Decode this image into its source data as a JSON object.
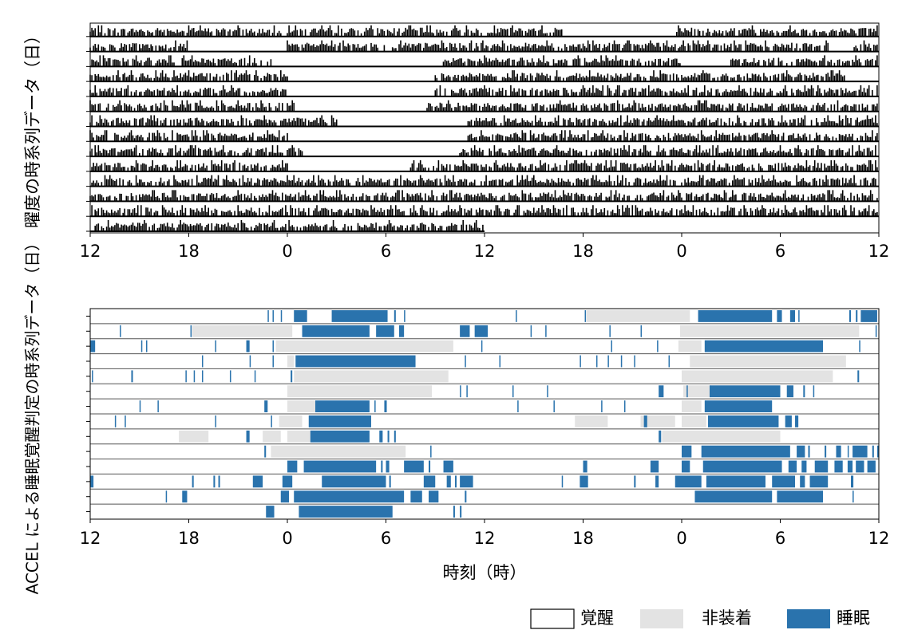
{
  "chart_data": [
    {
      "type": "actogram",
      "ylabel": "曜度の時系列データ（日）",
      "x_tick_labels": [
        "12",
        "18",
        "0",
        "6",
        "12",
        "18",
        "0",
        "6",
        "12"
      ],
      "x_range_hours": [
        0,
        48
      ],
      "days": 14,
      "last_day_end_hour": 24,
      "active_periods": [
        [
          [
            0,
            29
          ],
          [
            35.6,
            48
          ]
        ],
        [
          [
            0,
            6
          ],
          [
            12,
            45
          ],
          [
            46.5,
            48
          ]
        ],
        [
          [
            0,
            11
          ],
          [
            21.5,
            36
          ],
          [
            39,
            48
          ]
        ],
        [
          [
            0,
            12
          ],
          [
            21,
            46
          ]
        ],
        [
          [
            0,
            12
          ],
          [
            21,
            48
          ]
        ],
        [
          [
            0,
            12.5
          ],
          [
            20.5,
            48
          ]
        ],
        [
          [
            0,
            15
          ],
          [
            23,
            48
          ]
        ],
        [
          [
            0,
            12
          ],
          [
            23,
            48
          ]
        ],
        [
          [
            0,
            13
          ],
          [
            22.5,
            48
          ]
        ],
        [
          [
            0,
            12
          ],
          [
            19.5,
            48
          ]
        ],
        [
          [
            0,
            48
          ]
        ],
        [
          [
            0,
            48
          ]
        ],
        [
          [
            0,
            48
          ]
        ],
        [
          [
            0,
            24
          ]
        ]
      ],
      "grid": false
    },
    {
      "type": "state-timeline",
      "ylabel": "ACCEL による睡眠覚醒判定の時系列データ（日）",
      "xlabel": "時刻（時）",
      "x_tick_labels": [
        "12",
        "18",
        "0",
        "6",
        "12",
        "18",
        "0",
        "6",
        "12"
      ],
      "x_range_hours": [
        0,
        48
      ],
      "days": 14,
      "states": [
        "覚醒",
        "非装着",
        "睡眠"
      ],
      "colors": {
        "wake": "#ffffff",
        "nonwear": "#e3e3e3",
        "sleep": "#2a73ad",
        "row_line": "#555555"
      },
      "nonwear_periods": [
        [
          [
            30.2,
            36.5
          ]
        ],
        [
          [
            6.2,
            12.3
          ],
          [
            35.9,
            46.8
          ]
        ],
        [
          [
            11.3,
            22.1
          ],
          [
            35.8,
            37.2
          ]
        ],
        [
          [
            12,
            12.4
          ],
          [
            36.5,
            46
          ]
        ],
        [
          [
            12.4,
            21.8
          ],
          [
            36,
            45.2
          ]
        ],
        [
          [
            12,
            20.8
          ],
          [
            36.1,
            37.8
          ]
        ],
        [
          [
            12,
            13.7
          ],
          [
            36,
            37.2
          ]
        ],
        [
          [
            11.5,
            12.9
          ],
          [
            29.5,
            31.5
          ],
          [
            33.5,
            35.6
          ],
          [
            36,
            37.5
          ]
        ],
        [
          [
            5.4,
            7.2
          ],
          [
            10.5,
            11.6
          ],
          [
            12,
            13.6
          ],
          [
            34.8,
            42
          ]
        ],
        [
          [
            11,
            19.2
          ]
        ],
        [],
        [],
        [],
        []
      ],
      "sleep_periods": [
        [
          [
            10.8,
            10.85
          ],
          [
            11.1,
            11.15
          ],
          [
            11.6,
            11.65
          ],
          [
            12.4,
            13.2
          ],
          [
            14.7,
            18.1
          ],
          [
            18.5,
            18.6
          ],
          [
            19.1,
            19.15
          ],
          [
            25.9,
            25.95
          ],
          [
            30.1,
            30.15
          ],
          [
            37,
            41.5
          ],
          [
            41.8,
            42.1
          ],
          [
            42.6,
            42.9
          ],
          [
            43.1,
            43.15
          ],
          [
            46.2,
            46.3
          ],
          [
            46.6,
            46.7
          ],
          [
            46.9,
            47.9
          ]
        ],
        [
          [
            1.8,
            1.85
          ],
          [
            6.1,
            6.15
          ],
          [
            12.9,
            17
          ],
          [
            17.4,
            18.5
          ],
          [
            18.8,
            19.1
          ],
          [
            22.5,
            23.1
          ],
          [
            23.4,
            24.2
          ],
          [
            26.8,
            26.85
          ],
          [
            27.7,
            27.75
          ],
          [
            31.6,
            31.65
          ],
          [
            33.5,
            33.55
          ],
          [
            47.8,
            47.85
          ]
        ],
        [
          [
            0,
            0.3
          ],
          [
            3.1,
            3.15
          ],
          [
            3.4,
            3.45
          ],
          [
            7.6,
            7.65
          ],
          [
            9.5,
            9.7
          ],
          [
            11.1,
            11.15
          ],
          [
            23.8,
            23.85
          ],
          [
            31.7,
            31.75
          ],
          [
            34.5,
            34.55
          ],
          [
            37.4,
            44.6
          ],
          [
            46.8,
            46.85
          ]
        ],
        [
          [
            6.8,
            6.85
          ],
          [
            9.7,
            9.75
          ],
          [
            11.1,
            11.15
          ],
          [
            12.5,
            19.8
          ],
          [
            22.8,
            22.85
          ],
          [
            24.9,
            24.95
          ],
          [
            29.8,
            29.85
          ],
          [
            30.8,
            30.85
          ],
          [
            31.5,
            31.55
          ],
          [
            32.3,
            32.35
          ],
          [
            33.1,
            33.15
          ],
          [
            35.2,
            35.25
          ]
        ],
        [
          [
            0.1,
            0.15
          ],
          [
            2.5,
            2.6
          ],
          [
            5.8,
            5.85
          ],
          [
            6.3,
            6.35
          ],
          [
            6.8,
            6.85
          ],
          [
            8.5,
            8.55
          ],
          [
            10,
            10.05
          ],
          [
            12.2,
            12.3
          ],
          [
            46.7,
            46.8
          ]
        ],
        [
          [
            22.5,
            22.55
          ],
          [
            22.9,
            22.95
          ],
          [
            25.7,
            25.75
          ],
          [
            27.8,
            27.85
          ],
          [
            34.6,
            34.9
          ],
          [
            36.3,
            36.35
          ],
          [
            37.7,
            42
          ],
          [
            42.4,
            42.8
          ],
          [
            43.4,
            43.5
          ],
          [
            44,
            44.05
          ]
        ],
        [
          [
            3,
            3.05
          ],
          [
            4.1,
            4.15
          ],
          [
            10.6,
            10.8
          ],
          [
            13.7,
            17
          ],
          [
            17.3,
            17.35
          ],
          [
            17.9,
            18.05
          ],
          [
            26,
            26.05
          ],
          [
            28.2,
            28.25
          ],
          [
            31.1,
            31.15
          ],
          [
            32.5,
            32.55
          ],
          [
            37.4,
            41.5
          ]
        ],
        [
          [
            1.5,
            1.55
          ],
          [
            2.1,
            2.15
          ],
          [
            7.6,
            7.65
          ],
          [
            11,
            11.05
          ],
          [
            13.3,
            17.1
          ],
          [
            33.7,
            33.9
          ],
          [
            37.6,
            41.9
          ],
          [
            42.3,
            42.7
          ],
          [
            42.9,
            43.1
          ]
        ],
        [
          [
            9.5,
            9.7
          ],
          [
            13.4,
            17
          ],
          [
            17.6,
            17.8
          ],
          [
            18.1,
            18.2
          ],
          [
            18.5,
            18.6
          ],
          [
            34.6,
            34.75
          ]
        ],
        [
          [
            10.6,
            10.7
          ],
          [
            20.7,
            20.75
          ],
          [
            36,
            36.6
          ],
          [
            37.2,
            42.6
          ],
          [
            43,
            43.5
          ],
          [
            43.7,
            43.8
          ],
          [
            44.7,
            44.8
          ],
          [
            45.4,
            45.7
          ],
          [
            46.1,
            46.15
          ],
          [
            46.4,
            47.3
          ],
          [
            47.6,
            47.7
          ],
          [
            47.9,
            48
          ]
        ],
        [
          [
            12,
            12.6
          ],
          [
            13,
            17.4
          ],
          [
            17.7,
            17.8
          ],
          [
            18,
            18.2
          ],
          [
            19.1,
            20.3
          ],
          [
            20.6,
            20.7
          ],
          [
            21.5,
            22.1
          ],
          [
            30,
            30.25
          ],
          [
            34.1,
            34.6
          ],
          [
            36,
            36.5
          ],
          [
            37.3,
            42.1
          ],
          [
            42.5,
            43
          ],
          [
            43.3,
            43.6
          ],
          [
            44.1,
            44.9
          ],
          [
            45.3,
            45.8
          ],
          [
            46.1,
            46.4
          ],
          [
            46.6,
            47.1
          ],
          [
            47.3,
            47.8
          ]
        ],
        [
          [
            0,
            0.2
          ],
          [
            6.2,
            6.3
          ],
          [
            7.5,
            7.6
          ],
          [
            7.8,
            7.9
          ],
          [
            9.9,
            10.5
          ],
          [
            11.7,
            12.3
          ],
          [
            14.1,
            18
          ],
          [
            18.2,
            18.3
          ],
          [
            20.3,
            21
          ],
          [
            21.7,
            21.95
          ],
          [
            22.2,
            22.3
          ],
          [
            22.5,
            23.3
          ],
          [
            28.7,
            28.75
          ],
          [
            29.8,
            30.3
          ],
          [
            33.1,
            33.2
          ],
          [
            34.4,
            34.6
          ],
          [
            35.6,
            37.2
          ],
          [
            37.5,
            41.1
          ],
          [
            41.5,
            42.9
          ],
          [
            43.2,
            43.5
          ],
          [
            43.8,
            44.9
          ],
          [
            46.3,
            46.45
          ]
        ],
        [
          [
            4.6,
            4.65
          ],
          [
            5.6,
            5.9
          ],
          [
            11.6,
            12.1
          ],
          [
            12.4,
            19.1
          ],
          [
            19.5,
            20.2
          ],
          [
            20.6,
            21.2
          ],
          [
            22.8,
            22.9
          ],
          [
            36.8,
            41.5
          ],
          [
            41.8,
            44.6
          ],
          [
            46.4,
            46.45
          ]
        ],
        [
          [
            10.7,
            11.2
          ],
          [
            12.7,
            18.4
          ],
          [
            22.1,
            22.2
          ],
          [
            22.5,
            22.6
          ]
        ]
      ]
    }
  ],
  "legend": [
    {
      "label": "覚醒",
      "color": "#ffffff"
    },
    {
      "label": "非装着",
      "color": "#e3e3e3"
    },
    {
      "label": "睡眠",
      "color": "#2a73ad"
    }
  ]
}
